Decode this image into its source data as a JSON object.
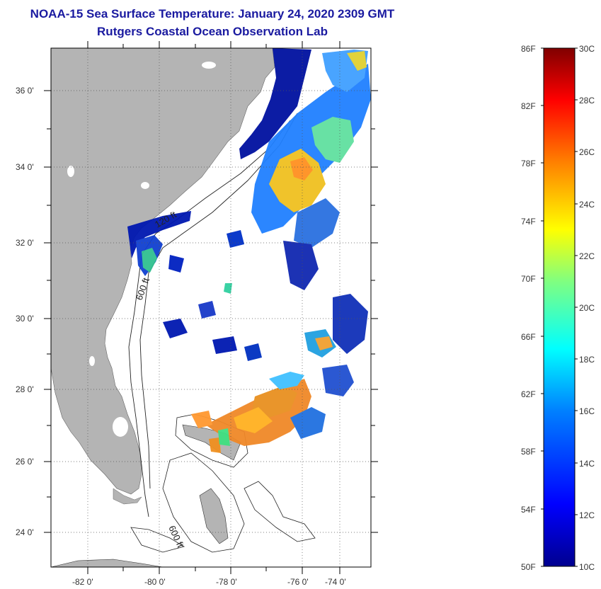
{
  "header": {
    "title": "NOAA-15 Sea Surface Temperature:  January 24, 2020 2309 GMT",
    "subtitle": "Rutgers Coastal Ocean Observation Lab"
  },
  "map": {
    "lat_labels": [
      "36 0'",
      "34 0'",
      "32 0'",
      "30 0'",
      "28 0'",
      "26 0'",
      "24 0'"
    ],
    "lon_labels": [
      "-82 0'",
      "-80 0'",
      "-78 0'",
      "-76 0'",
      "-74 0'"
    ],
    "contour_labels": [
      "120 ft",
      "600 ft",
      "600 ft"
    ],
    "colors": {
      "land": "#b4b4b4",
      "ocean": "#ffffff",
      "cloud_mask": "#ffffff"
    }
  },
  "colorbar": {
    "f_labels": [
      "86F",
      "82F",
      "78F",
      "74F",
      "70F",
      "66F",
      "62F",
      "58F",
      "54F",
      "50F"
    ],
    "c_labels": [
      "30C",
      "28C",
      "26C",
      "24C",
      "22C",
      "20C",
      "18C",
      "16C",
      "14C",
      "12C",
      "10C"
    ],
    "stops": [
      "#00008f",
      "#0000ff",
      "#0080ff",
      "#00ffff",
      "#80ff80",
      "#ffff00",
      "#ff8000",
      "#ff0000",
      "#800000"
    ]
  }
}
